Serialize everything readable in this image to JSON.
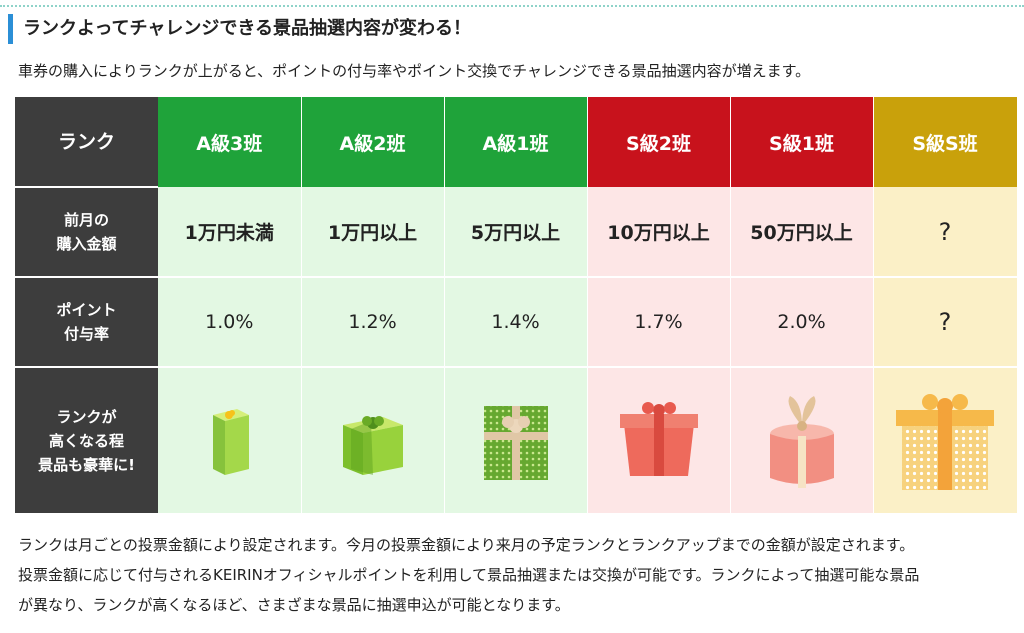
{
  "heading": "ランクよってチャレンジできる景品抽選内容が変わる！",
  "intro": "車券の購入によりランクが上がると、ポイントの付与率やポイント交換でチャレンジできる景品抽選内容が増えます。",
  "table": {
    "row_labels": {
      "rank": "ランク",
      "purchase_line1": "前月の",
      "purchase_line2": "購入金額",
      "rate_line1": "ポイント",
      "rate_line2": "付与率",
      "prize_line1": "ランクが",
      "prize_line2": "高くなる程",
      "prize_line3": "景品も豪華に!"
    },
    "ranks": [
      {
        "name": "A級3班",
        "purchase": "1万円未満",
        "rate": "1.0%",
        "color": "#1fa33a",
        "gift": "green-small-box-icon"
      },
      {
        "name": "A級2班",
        "purchase": "1万円以上",
        "rate": "1.2%",
        "color": "#1fa33a",
        "gift": "green-ribbon-box-icon"
      },
      {
        "name": "A級1班",
        "purchase": "5万円以上",
        "rate": "1.4%",
        "color": "#1fa33a",
        "gift": "green-dotted-box-icon"
      },
      {
        "name": "S級2班",
        "purchase": "10万円以上",
        "rate": "1.7%",
        "color": "#c8121c",
        "gift": "red-ribbon-box-icon"
      },
      {
        "name": "S級1班",
        "purchase": "50万円以上",
        "rate": "2.0%",
        "color": "#c8121c",
        "gift": "pink-round-box-icon"
      },
      {
        "name": "S級S班",
        "purchase": "?",
        "rate": "?",
        "color": "#c9a10b",
        "gift": "gold-dotted-box-icon"
      }
    ]
  },
  "bottom": {
    "line1": "ランクは月ごとの投票金額により設定されます。今月の投票金額により来月の予定ランクとランクアップまでの金額が設定されます。",
    "line2": "投票金額に応じて付与されるKEIRINオフィシャルポイントを利用して景品抽選または交換が可能です。ランクによって抽選可能な景品",
    "line3": "が異なり、ランクが高くなるほど、さまざまな景品に抽選申込が可能となります。"
  }
}
